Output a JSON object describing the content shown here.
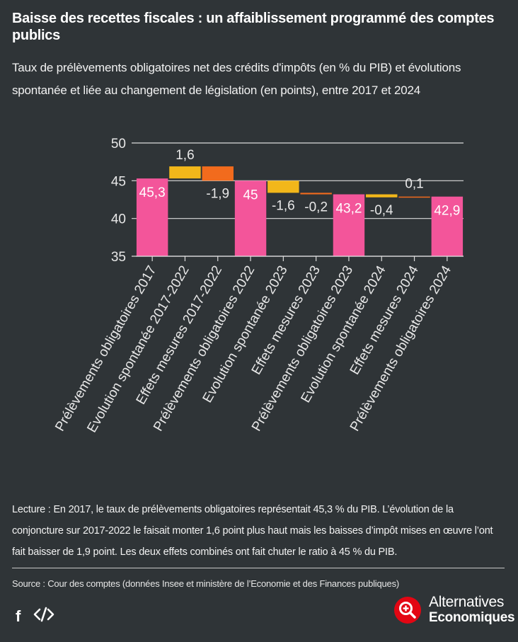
{
  "header": {
    "title": "Baisse des recettes fiscales : un affaiblissement programmé des comptes publics",
    "subtitle": "Taux de prélèvements obligatoires net des crédits d'impôts (en % du PIB) et évolutions spontanée et liée au changement de législation (en points), entre 2017 et 2024"
  },
  "chart_data": {
    "type": "waterfall",
    "ylim": [
      35,
      50
    ],
    "yticks": [
      35,
      40,
      45,
      50
    ],
    "grid": true,
    "categories": [
      "Prélèvements obligatoires 2017",
      "Evolution spontanée 2017-2022",
      "Effets mesures 2017-2022",
      "Prélèvements obligatoires 2022",
      "Evolution spontanée 2023",
      "Effets mesures 2023",
      "Prélèvements obligatoires 2023",
      "Evolution spontanée 2024",
      "Effets mesures 2024",
      "Prélèvements obligatoires 2024"
    ],
    "bars": [
      {
        "kind": "total",
        "value": 45.3,
        "label": "45,3"
      },
      {
        "kind": "spontaneous",
        "value": 1.6,
        "label": "1,6"
      },
      {
        "kind": "measures",
        "value": -1.9,
        "label": "-1,9"
      },
      {
        "kind": "total",
        "value": 45.0,
        "label": "45"
      },
      {
        "kind": "spontaneous",
        "value": -1.6,
        "label": "-1,6"
      },
      {
        "kind": "measures",
        "value": -0.2,
        "label": "-0,2"
      },
      {
        "kind": "total",
        "value": 43.2,
        "label": "43,2"
      },
      {
        "kind": "spontaneous",
        "value": -0.4,
        "label": "-0,4"
      },
      {
        "kind": "measures",
        "value": 0.1,
        "label": "0,1"
      },
      {
        "kind": "total",
        "value": 42.9,
        "label": "42,9"
      }
    ],
    "colors": {
      "total": "#f3559a",
      "spontaneous": "#f2b71a",
      "measures": "#f26b1d"
    }
  },
  "notes": {
    "reading": "Lecture : En 2017, le taux de prélèvements obligatoires représentait 45,3 % du PIB. L’évolution de la conjoncture sur 2017-2022 le faisait monter 1,6 point plus haut mais les baisses d’impôt mises en œuvre l’ont fait baisser de 1,9 point. Les deux effets combinés ont fait chuter le ratio à 45 % du PIB.",
    "source": "Source : Cour des comptes (données Insee et ministère de l’Economie et des Finances publiques)"
  },
  "footer": {
    "facebook_label": "f",
    "embed_label": "</>",
    "brand_line1": "Alternatives",
    "brand_line2": "Economiques"
  }
}
